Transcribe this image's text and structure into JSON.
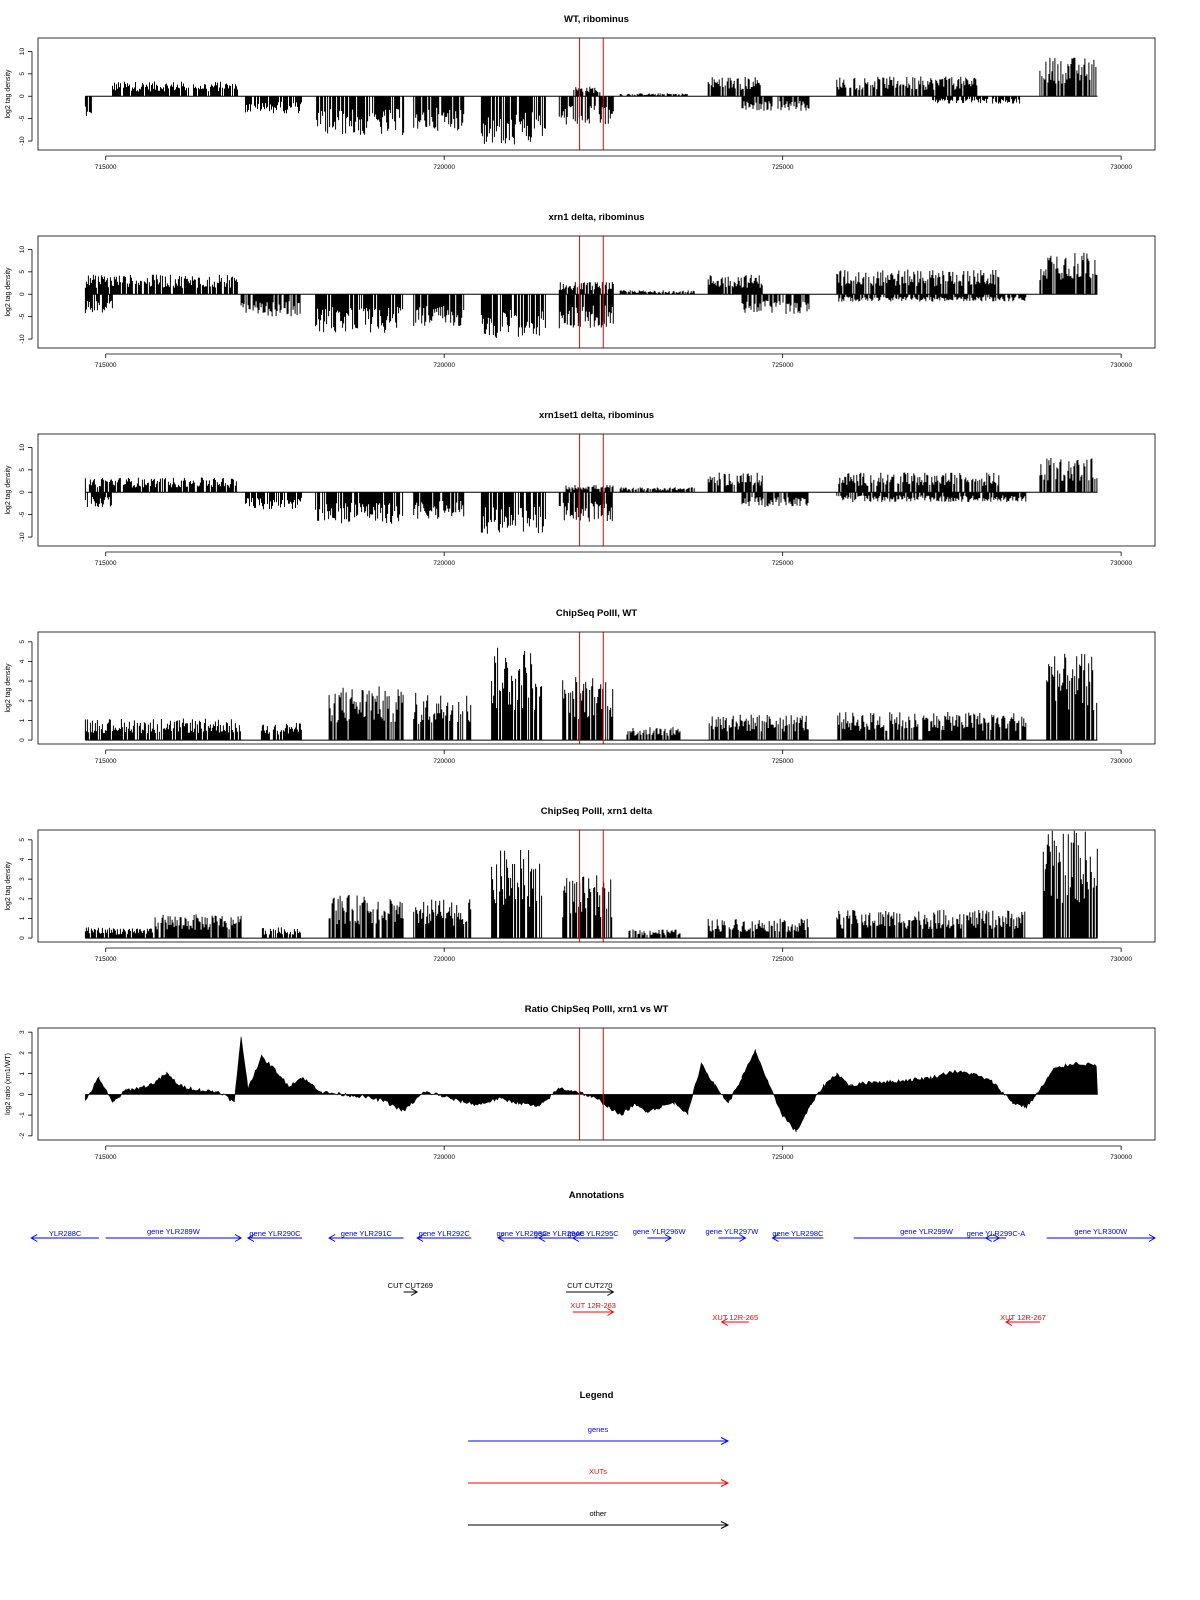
{
  "chart_data": [
    {
      "type": "bar",
      "title": "WT, ribominus",
      "ylabel": "log2 tag density",
      "xlim": [
        714000,
        730500
      ],
      "ylim": [
        -12,
        13
      ],
      "yticks": [
        -10,
        -5,
        0,
        5,
        10
      ],
      "xticks": [
        715000,
        720000,
        725000,
        730000
      ],
      "red_lines": [
        722000,
        722350
      ],
      "segments": [
        {
          "start": 714700,
          "end": 714800,
          "value": -4,
          "strand": "minus"
        },
        {
          "start": 715100,
          "end": 716950,
          "value": 3,
          "strand": "plus"
        },
        {
          "start": 717050,
          "end": 717900,
          "value": -3.5,
          "strand": "minus"
        },
        {
          "start": 718100,
          "end": 719400,
          "value": -8,
          "strand": "minus"
        },
        {
          "start": 719550,
          "end": 720300,
          "value": -7,
          "strand": "minus"
        },
        {
          "start": 720550,
          "end": 721500,
          "value": -10,
          "strand": "minus"
        },
        {
          "start": 721700,
          "end": 722500,
          "value": -6,
          "strand": "minus"
        },
        {
          "start": 721900,
          "end": 722300,
          "value": 2,
          "strand": "plus"
        },
        {
          "start": 722600,
          "end": 723600,
          "value": 0.6,
          "strand": "plus"
        },
        {
          "start": 723900,
          "end": 724700,
          "value": 4,
          "strand": "plus"
        },
        {
          "start": 724400,
          "end": 725400,
          "value": -3,
          "strand": "minus"
        },
        {
          "start": 725800,
          "end": 727900,
          "value": 4,
          "strand": "plus"
        },
        {
          "start": 727200,
          "end": 728500,
          "value": -1.5,
          "strand": "minus"
        },
        {
          "start": 728800,
          "end": 729650,
          "value": 8,
          "strand": "plus"
        }
      ]
    },
    {
      "type": "bar",
      "title": "xrn1 delta, ribominus",
      "ylabel": "log2 tag density",
      "xlim": [
        714000,
        730500
      ],
      "ylim": [
        -12,
        13
      ],
      "yticks": [
        -10,
        -5,
        0,
        5,
        10
      ],
      "xticks": [
        715000,
        720000,
        725000,
        730000
      ],
      "red_lines": [
        722000,
        722350
      ],
      "segments": [
        {
          "start": 714700,
          "end": 715100,
          "value": -4,
          "strand": "minus"
        },
        {
          "start": 714700,
          "end": 716950,
          "value": 4,
          "strand": "plus"
        },
        {
          "start": 717000,
          "end": 717900,
          "value": -4.5,
          "strand": "minus"
        },
        {
          "start": 718100,
          "end": 719400,
          "value": -8,
          "strand": "minus"
        },
        {
          "start": 719550,
          "end": 720300,
          "value": -6.5,
          "strand": "minus"
        },
        {
          "start": 720550,
          "end": 721500,
          "value": -9,
          "strand": "minus"
        },
        {
          "start": 721700,
          "end": 722500,
          "value": -7,
          "strand": "minus"
        },
        {
          "start": 721700,
          "end": 722500,
          "value": 2.5,
          "strand": "plus"
        },
        {
          "start": 722600,
          "end": 723700,
          "value": 0.8,
          "strand": "plus"
        },
        {
          "start": 723900,
          "end": 724700,
          "value": 4,
          "strand": "plus"
        },
        {
          "start": 724400,
          "end": 725400,
          "value": -4,
          "strand": "minus"
        },
        {
          "start": 725800,
          "end": 728200,
          "value": 5,
          "strand": "plus"
        },
        {
          "start": 725800,
          "end": 728600,
          "value": -1.5,
          "strand": "minus"
        },
        {
          "start": 728800,
          "end": 729650,
          "value": 9,
          "strand": "plus"
        }
      ]
    },
    {
      "type": "bar",
      "title": "xrn1set1 delta, ribominus",
      "ylabel": "log2 tag density",
      "xlim": [
        714000,
        730500
      ],
      "ylim": [
        -12,
        13
      ],
      "yticks": [
        -10,
        -5,
        0,
        5,
        10
      ],
      "xticks": [
        715000,
        720000,
        725000,
        730000
      ],
      "red_lines": [
        722000,
        722350
      ],
      "segments": [
        {
          "start": 714700,
          "end": 715100,
          "value": -3,
          "strand": "minus"
        },
        {
          "start": 714700,
          "end": 716950,
          "value": 3,
          "strand": "plus"
        },
        {
          "start": 717050,
          "end": 717900,
          "value": -3.5,
          "strand": "minus"
        },
        {
          "start": 718100,
          "end": 719400,
          "value": -6.5,
          "strand": "minus"
        },
        {
          "start": 719550,
          "end": 720300,
          "value": -5.5,
          "strand": "minus"
        },
        {
          "start": 720550,
          "end": 721500,
          "value": -8.5,
          "strand": "minus"
        },
        {
          "start": 721700,
          "end": 722500,
          "value": -6,
          "strand": "minus"
        },
        {
          "start": 721800,
          "end": 722500,
          "value": 1.5,
          "strand": "plus"
        },
        {
          "start": 722600,
          "end": 723700,
          "value": 1,
          "strand": "plus"
        },
        {
          "start": 723900,
          "end": 724700,
          "value": 4,
          "strand": "plus"
        },
        {
          "start": 724400,
          "end": 725400,
          "value": -3,
          "strand": "minus"
        },
        {
          "start": 725800,
          "end": 728200,
          "value": 4,
          "strand": "plus"
        },
        {
          "start": 725800,
          "end": 728600,
          "value": -2,
          "strand": "minus"
        },
        {
          "start": 728800,
          "end": 729650,
          "value": 7,
          "strand": "plus"
        }
      ]
    },
    {
      "type": "bar",
      "title": "ChipSeq PolII, WT",
      "ylabel": "log2 tag density",
      "xlim": [
        714000,
        730500
      ],
      "ylim": [
        -0.2,
        5.5
      ],
      "yticks": [
        0,
        1,
        2,
        3,
        4,
        5
      ],
      "xticks": [
        715000,
        720000,
        725000,
        730000
      ],
      "red_lines": [
        722000,
        722350
      ],
      "segments": [
        {
          "start": 714700,
          "end": 717000,
          "value": 1,
          "strand": "plus"
        },
        {
          "start": 717300,
          "end": 717900,
          "value": 0.8,
          "strand": "plus"
        },
        {
          "start": 718300,
          "end": 719400,
          "value": 2.5,
          "strand": "plus"
        },
        {
          "start": 719550,
          "end": 720400,
          "value": 2.2,
          "strand": "plus"
        },
        {
          "start": 720700,
          "end": 721450,
          "value": 4.3,
          "strand": "plus"
        },
        {
          "start": 721750,
          "end": 722500,
          "value": 3,
          "strand": "plus"
        },
        {
          "start": 722700,
          "end": 723500,
          "value": 0.6,
          "strand": "plus"
        },
        {
          "start": 723900,
          "end": 725400,
          "value": 1.2,
          "strand": "plus"
        },
        {
          "start": 725800,
          "end": 728600,
          "value": 1.3,
          "strand": "plus"
        },
        {
          "start": 728900,
          "end": 729650,
          "value": 4,
          "strand": "plus"
        }
      ]
    },
    {
      "type": "bar",
      "title": "ChipSeq PolII, xrn1 delta",
      "ylabel": "log2 tag density",
      "xlim": [
        714000,
        730500
      ],
      "ylim": [
        -0.2,
        5.5
      ],
      "yticks": [
        0,
        1,
        2,
        3,
        4,
        5
      ],
      "xticks": [
        715000,
        720000,
        725000,
        730000
      ],
      "red_lines": [
        722000,
        722350
      ],
      "segments": [
        {
          "start": 714700,
          "end": 715700,
          "value": 0.5,
          "strand": "plus"
        },
        {
          "start": 715700,
          "end": 717000,
          "value": 1.1,
          "strand": "plus"
        },
        {
          "start": 717300,
          "end": 717900,
          "value": 0.5,
          "strand": "plus"
        },
        {
          "start": 718300,
          "end": 719400,
          "value": 2,
          "strand": "plus"
        },
        {
          "start": 719550,
          "end": 720400,
          "value": 1.8,
          "strand": "plus"
        },
        {
          "start": 720700,
          "end": 721450,
          "value": 4.1,
          "strand": "plus"
        },
        {
          "start": 721750,
          "end": 722500,
          "value": 2.9,
          "strand": "plus"
        },
        {
          "start": 722700,
          "end": 723500,
          "value": 0.4,
          "strand": "plus"
        },
        {
          "start": 723900,
          "end": 725400,
          "value": 0.9,
          "strand": "plus"
        },
        {
          "start": 725800,
          "end": 728600,
          "value": 1.3,
          "strand": "plus"
        },
        {
          "start": 728850,
          "end": 729650,
          "value": 5,
          "strand": "plus"
        }
      ]
    },
    {
      "type": "area",
      "title": "Ratio ChipSeq PolII, xrn1 vs WT",
      "ylabel": "log2 ratio (xrn1/WT)",
      "xlim": [
        714000,
        730500
      ],
      "ylim": [
        -2.2,
        3.2
      ],
      "yticks": [
        -2,
        -1,
        0,
        1,
        2,
        3
      ],
      "xticks": [
        715000,
        720000,
        725000,
        730000
      ],
      "red_lines": [
        722000,
        722350
      ],
      "x": [
        714700,
        714900,
        715100,
        715300,
        715500,
        715700,
        715900,
        716100,
        716400,
        716700,
        716900,
        717000,
        717100,
        717300,
        717500,
        717700,
        717900,
        718200,
        718500,
        718800,
        719100,
        719400,
        719700,
        719900,
        720200,
        720500,
        720800,
        721100,
        721400,
        721700,
        722000,
        722300,
        722600,
        722800,
        723000,
        723200,
        723400,
        723600,
        723800,
        724000,
        724200,
        724400,
        724600,
        724800,
        725000,
        725200,
        725400,
        725600,
        725800,
        726000,
        726300,
        726600,
        726900,
        727200,
        727500,
        727800,
        728100,
        728400,
        728600,
        728800,
        729000,
        729300,
        729650
      ],
      "values": [
        -0.3,
        0.8,
        -0.4,
        0.2,
        0.3,
        0.5,
        1.0,
        0.4,
        0.2,
        0.1,
        -0.4,
        2.8,
        0.3,
        1.8,
        1.2,
        0.4,
        0.8,
        0.1,
        0.0,
        -0.1,
        -0.3,
        -0.8,
        0.1,
        0.0,
        -0.3,
        -0.5,
        -0.2,
        -0.4,
        -0.6,
        0.3,
        0.1,
        -0.3,
        -1.0,
        -0.5,
        -0.8,
        -0.6,
        -0.4,
        -0.9,
        1.5,
        0.4,
        -0.4,
        0.8,
        2.1,
        0.4,
        -1.0,
        -1.8,
        -0.6,
        0.4,
        1.0,
        0.4,
        0.6,
        0.6,
        0.7,
        0.8,
        1.1,
        1.0,
        0.6,
        -0.4,
        -0.6,
        0.2,
        1.2,
        1.5,
        1.4
      ]
    }
  ],
  "annotations": {
    "title": "Annotations",
    "xlim": [
      714000,
      730500
    ],
    "features": [
      {
        "label": "YLR288C",
        "start": 713900,
        "end": 714900,
        "dir": "minus",
        "type": "gene",
        "row": 0
      },
      {
        "label": "gene YLR289W",
        "start": 715000,
        "end": 717000,
        "dir": "plus",
        "type": "gene",
        "row": 0
      },
      {
        "label": "gene YLR290C",
        "start": 717100,
        "end": 717900,
        "dir": "minus",
        "type": "gene",
        "row": 0
      },
      {
        "label": "gene YLR291C",
        "start": 718300,
        "end": 719400,
        "dir": "minus",
        "type": "gene",
        "row": 0
      },
      {
        "label": "gene YLR292C",
        "start": 719600,
        "end": 720400,
        "dir": "minus",
        "type": "gene",
        "row": 0
      },
      {
        "label": "gene YLR293C",
        "start": 720800,
        "end": 721500,
        "dir": "minus",
        "type": "gene",
        "row": 0
      },
      {
        "label": "gene YLR294C",
        "start": 721400,
        "end": 722000,
        "dir": "minus",
        "type": "gene",
        "row": 0
      },
      {
        "label": "gene YLR295C",
        "start": 721900,
        "end": 722500,
        "dir": "minus",
        "type": "gene",
        "row": 0
      },
      {
        "label": "gene YLR296W",
        "start": 723000,
        "end": 723350,
        "dir": "plus",
        "type": "gene",
        "row": 0
      },
      {
        "label": "gene YLR297W",
        "start": 724050,
        "end": 724450,
        "dir": "plus",
        "type": "gene",
        "row": 0
      },
      {
        "label": "gene YLR298C",
        "start": 724850,
        "end": 725600,
        "dir": "minus",
        "type": "gene",
        "row": 0
      },
      {
        "label": "gene YLR299W",
        "start": 726050,
        "end": 728200,
        "dir": "plus",
        "type": "gene",
        "row": 0
      },
      {
        "label": "gene YLR299C-A",
        "start": 728000,
        "end": 728300,
        "dir": "minus",
        "type": "gene",
        "row": 0
      },
      {
        "label": "gene YLR300W",
        "start": 728900,
        "end": 730500,
        "dir": "plus",
        "type": "gene",
        "row": 0
      },
      {
        "label": "CUT CUT269",
        "start": 719400,
        "end": 719600,
        "dir": "plus",
        "type": "other",
        "row": 1
      },
      {
        "label": "CUT CUT270",
        "start": 721800,
        "end": 722500,
        "dir": "plus",
        "type": "other",
        "row": 1
      },
      {
        "label": "XUT 12R-263",
        "start": 721900,
        "end": 722500,
        "dir": "plus",
        "type": "xut",
        "row": 2
      },
      {
        "label": "XUT 12R-265",
        "start": 724100,
        "end": 724500,
        "dir": "minus",
        "type": "xut",
        "row": 3
      },
      {
        "label": "XUT 12R-267",
        "start": 728300,
        "end": 728800,
        "dir": "minus",
        "type": "xut",
        "row": 3
      }
    ]
  },
  "legend": {
    "title": "Legend",
    "items": [
      {
        "label": "genes",
        "color": "#0000ff"
      },
      {
        "label": "XUTs",
        "color": "#ff0000"
      },
      {
        "label": "other",
        "color": "#000000"
      }
    ]
  },
  "colors": {
    "gene": "#0000ff",
    "xut": "#ff0000",
    "other": "#000000",
    "marker": "#ff0000",
    "signal": "#000000"
  }
}
